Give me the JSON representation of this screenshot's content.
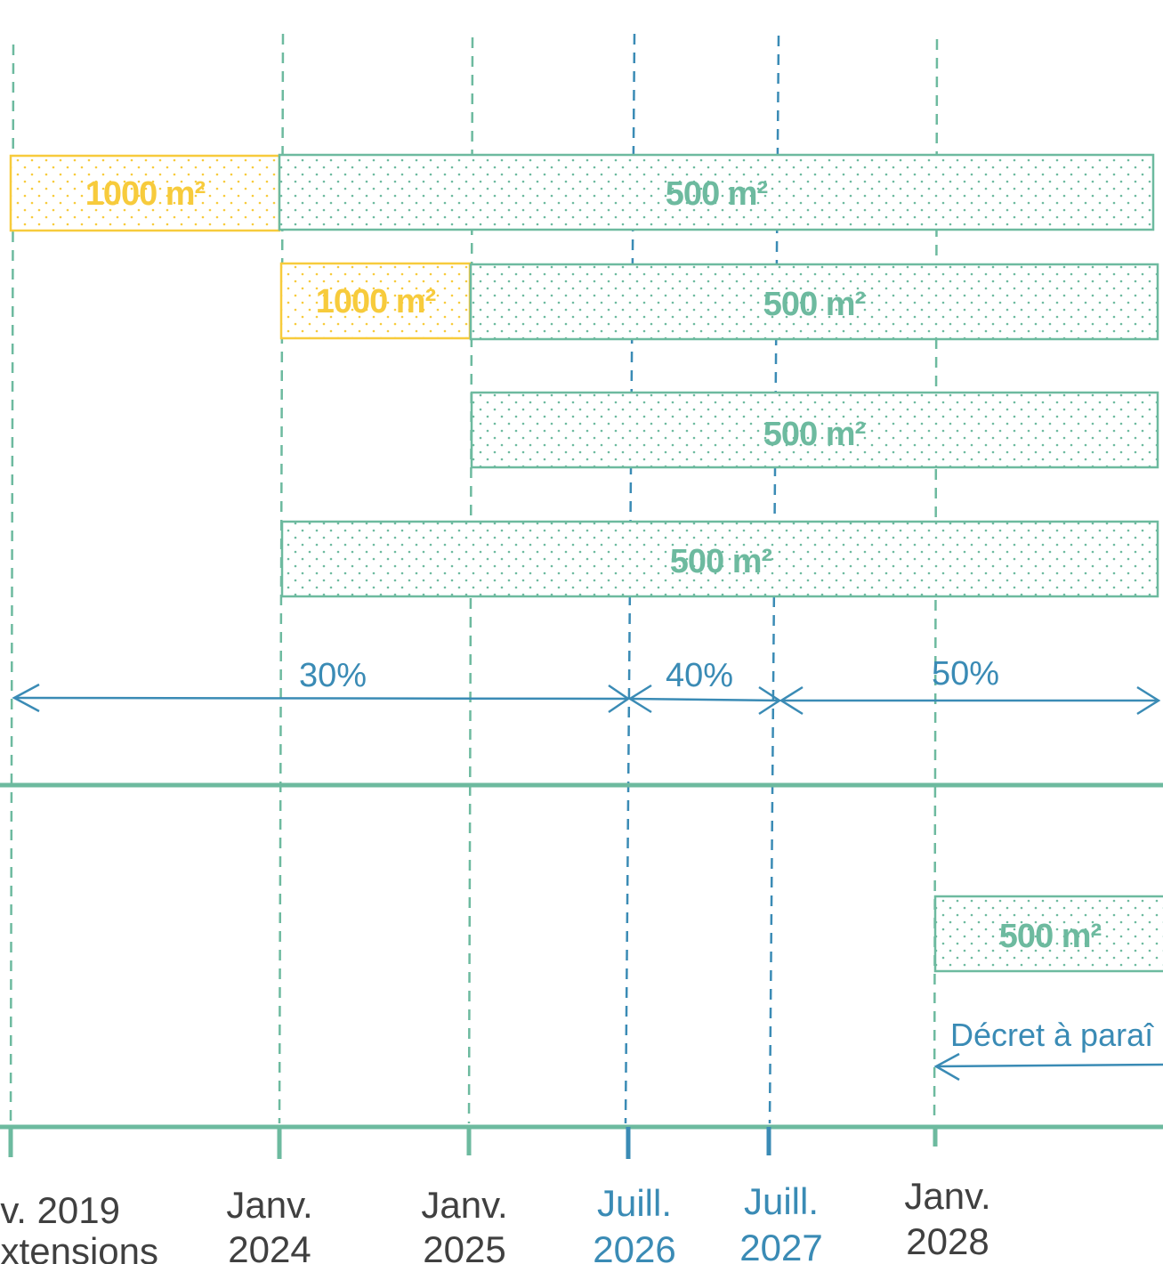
{
  "colors": {
    "green": "#6dba9f",
    "yellow": "#f7cb3c",
    "blue": "#3a8bb5",
    "text_gray": "#404040",
    "white": "#ffffff"
  },
  "bars": [
    {
      "label": "1000 m²",
      "color": "yellow"
    },
    {
      "label": "500 m²",
      "color": "green"
    },
    {
      "label": "1000 m²",
      "color": "yellow"
    },
    {
      "label": "500 m²",
      "color": "green"
    },
    {
      "label": "500 m²",
      "color": "green"
    },
    {
      "label": "500 m²",
      "color": "green"
    },
    {
      "label": "500 m²",
      "color": "green"
    }
  ],
  "rates": [
    {
      "label": "30%"
    },
    {
      "label": "40%"
    },
    {
      "label": "50%"
    }
  ],
  "note": "Décret à paraî",
  "timeline": [
    {
      "line1": "v. 2019",
      "line2": "extensions",
      "color": "text_gray"
    },
    {
      "line1": "Janv.",
      "line2": "2024",
      "color": "text_gray"
    },
    {
      "line1": "Janv.",
      "line2": "2025",
      "color": "text_gray"
    },
    {
      "line1": "Juill.",
      "line2": "2026",
      "color": "blue"
    },
    {
      "line1": "Juill.",
      "line2": "2027",
      "color": "blue"
    },
    {
      "line1": "Janv.",
      "line2": "2028",
      "color": "text_gray"
    }
  ]
}
